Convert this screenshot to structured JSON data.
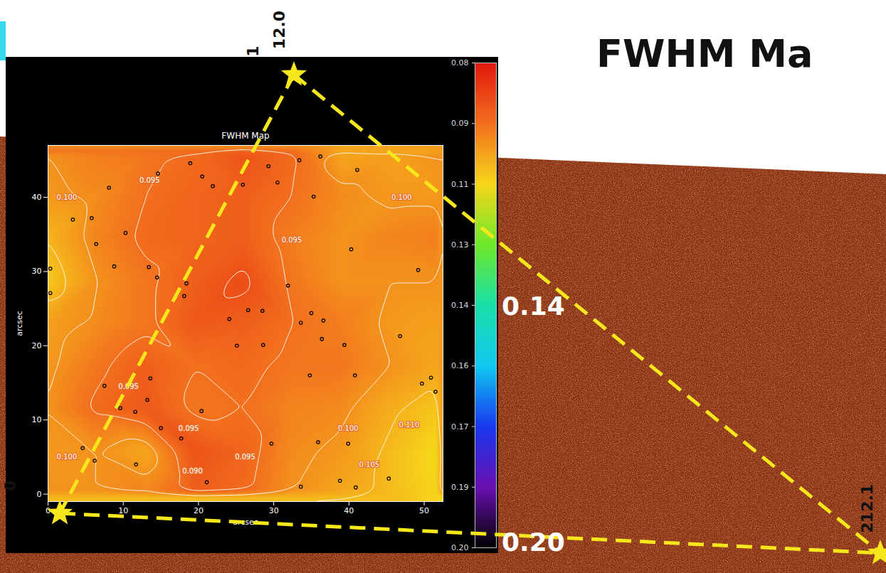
{
  "slide": {
    "title": "FWHM Ma"
  },
  "chart_data": {
    "type": "heatmap",
    "title": "FWHM Map",
    "x_label": "arcsec",
    "y_label": "arcsec",
    "xlim": [
      0,
      52.5
    ],
    "xticks": [
      0,
      10,
      20,
      30,
      40,
      50
    ],
    "ylim": [
      -1,
      47
    ],
    "yticks": [
      0,
      10,
      20,
      30,
      40
    ],
    "cells": {
      "x": [
        0,
        6.5,
        13,
        19.5,
        26,
        32.5,
        39,
        45.5,
        52
      ],
      "y": [
        0,
        5.75,
        11.5,
        17.25,
        23,
        28.75,
        34.5,
        40.25,
        46
      ],
      "values": [
        [
          0.1,
          0.1,
          0.098,
          0.092,
          0.094,
          0.1,
          0.103,
          0.106,
          0.11
        ],
        [
          0.101,
          0.1,
          0.103,
          0.09,
          0.093,
          0.099,
          0.101,
          0.106,
          0.111
        ],
        [
          0.1,
          0.094,
          0.091,
          0.096,
          0.095,
          0.098,
          0.099,
          0.104,
          0.108
        ],
        [
          0.101,
          0.096,
          0.092,
          0.095,
          0.094,
          0.096,
          0.096,
          0.1,
          0.103
        ],
        [
          0.102,
          0.099,
          0.096,
          0.091,
          0.092,
          0.095,
          0.097,
          0.101,
          0.102
        ],
        [
          0.108,
          0.1,
          0.096,
          0.092,
          0.089,
          0.096,
          0.1,
          0.1,
          0.1
        ],
        [
          0.105,
          0.098,
          0.094,
          0.093,
          0.092,
          0.097,
          0.1,
          0.098,
          0.097
        ],
        [
          0.101,
          0.099,
          0.095,
          0.093,
          0.092,
          0.095,
          0.099,
          0.101,
          0.101
        ],
        [
          0.1,
          0.097,
          0.096,
          0.094,
          0.09,
          0.094,
          0.103,
          0.102,
          0.1
        ]
      ]
    },
    "colorbar": {
      "range": [
        0.08,
        0.2
      ],
      "ticks": [
        0.08,
        {
          "value": 0.095,
          "label": "0.09"
        },
        0.11,
        {
          "value": 0.125,
          "label": "0.13"
        },
        0.14,
        {
          "value": 0.155,
          "label": "0.16"
        },
        0.17,
        {
          "value": 0.185,
          "label": "0.19"
        },
        {
          "value": 0.2,
          "label": "0.20"
        }
      ]
    },
    "contour_levels": [
      0.09,
      0.095,
      0.1,
      0.105,
      0.11
    ],
    "contour_labels": [
      {
        "x": 13.5,
        "y": 42.3,
        "label": "0.095"
      },
      {
        "x": 2.5,
        "y": 40.0,
        "label": "0.100"
      },
      {
        "x": 47.0,
        "y": 40.0,
        "label": "0.100"
      },
      {
        "x": 32.4,
        "y": 34.2,
        "label": "0.095"
      },
      {
        "x": 10.7,
        "y": 14.5,
        "label": "0.095"
      },
      {
        "x": 18.7,
        "y": 8.8,
        "label": "0.095"
      },
      {
        "x": 19.2,
        "y": 3.1,
        "label": "0.090"
      },
      {
        "x": 26.2,
        "y": 5.0,
        "label": "0.095"
      },
      {
        "x": 39.9,
        "y": 8.8,
        "label": "0.100"
      },
      {
        "x": 42.7,
        "y": 4.0,
        "label": "0.105"
      },
      {
        "x": 48.0,
        "y": 9.3,
        "label": "0.110"
      },
      {
        "x": 2.5,
        "y": 5.0,
        "label": "0.100"
      }
    ],
    "sources": {
      "x": [
        14.6,
        18.9,
        20.5,
        21.9,
        25.9,
        29.3,
        30.5,
        33.4,
        35.3,
        36.2,
        41.1,
        8.1,
        3.3,
        5.8,
        6.4,
        10.3,
        0.3,
        0.3,
        8.8,
        13.4,
        14.5,
        18.4,
        18.1,
        24.1,
        26.6,
        28.5,
        31.9,
        25.1,
        28.6,
        33.6,
        35.0,
        36.6,
        36.4,
        39.4,
        40.3,
        49.2,
        46.8,
        34.8,
        40.8,
        50.9,
        49.7,
        51.5,
        13.6,
        13.2,
        9.6,
        11.6,
        7.5,
        15.0,
        17.7,
        20.4,
        4.6,
        6.2,
        11.7,
        21.1,
        29.7,
        33.6,
        35.9,
        39.9,
        38.8,
        40.9,
        45.3
      ],
      "y": [
        43.2,
        44.6,
        42.8,
        41.5,
        41.7,
        44.2,
        42.0,
        45.0,
        40.1,
        45.5,
        43.7,
        41.3,
        37.0,
        37.2,
        33.7,
        35.2,
        30.4,
        27.1,
        30.7,
        30.6,
        29.2,
        28.4,
        26.7,
        23.6,
        24.8,
        24.7,
        28.1,
        20.0,
        20.1,
        23.1,
        24.4,
        23.4,
        20.9,
        20.1,
        33.0,
        30.2,
        21.3,
        16.0,
        16.0,
        15.7,
        14.9,
        13.8,
        15.6,
        12.7,
        11.6,
        11.1,
        14.6,
        8.9,
        7.5,
        11.2,
        6.2,
        4.5,
        4.0,
        1.6,
        6.8,
        1.0,
        7.0,
        6.8,
        1.8,
        0.9,
        2.1
      ]
    }
  },
  "overlay": {
    "vertices": [
      {
        "labels": [
          "1",
          "12.0"
        ]
      },
      {
        "labels": [
          "0"
        ]
      },
      {
        "labels": [
          "2",
          "12.1"
        ]
      }
    ],
    "edges": [
      {
        "label": "0.14"
      },
      {
        "label": "0.20"
      }
    ]
  }
}
